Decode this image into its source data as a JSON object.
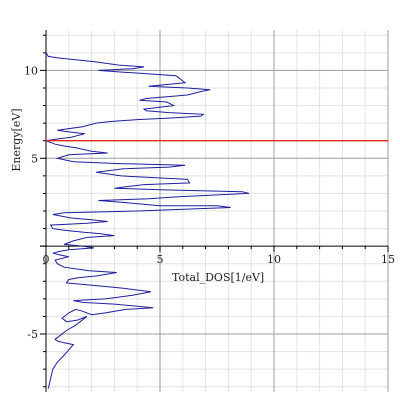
{
  "chart_data": {
    "type": "line",
    "title": "",
    "xlabel": "Total_DOS[1/eV]",
    "ylabel": "Energy[eV]",
    "xlim": [
      0,
      15
    ],
    "ylim": [
      -8.3,
      12.3
    ],
    "grid": true,
    "x_ticks": [
      0,
      5,
      10,
      15
    ],
    "y_ticks": [
      -5,
      5,
      10
    ],
    "colors": {
      "dos_curve": "#1f1f9e",
      "fermi_line": "#e8281e",
      "major_grid": "#9c9c9c",
      "minor_grid": "#e3e3e3",
      "axis": "#000000"
    },
    "reference_line": {
      "orientation": "horizontal",
      "y": 6.0
    },
    "series": [
      {
        "x": [
          0.1,
          0.3,
          0.5,
          0.8,
          1.0,
          1.2,
          0.8,
          0.5,
          0.4,
          0.6,
          0.9,
          1.3,
          1.5,
          1.8,
          1.4,
          0.9,
          0.7,
          1.0,
          1.3,
          1.6,
          2.0,
          2.6,
          3.5,
          4.7,
          3.0,
          1.6,
          1.2,
          2.6,
          3.8,
          4.6,
          3.4,
          1.8,
          0.9,
          1.0,
          1.4,
          2.2,
          3.1,
          1.9,
          0.8,
          0.5,
          0.4,
          0.7,
          1.0,
          0.6,
          0.3,
          0.6,
          1.0,
          2.1,
          1.6,
          0.8,
          1.2,
          1.8,
          3.0,
          2.4,
          1.6,
          0.8,
          0.3,
          0.2,
          1.8,
          2.7,
          2.0,
          1.1,
          0.3,
          0.8,
          4.0,
          8.1,
          7.5,
          5.0,
          3.3,
          2.3,
          4.5,
          5.7,
          8.9,
          8.6,
          5.2,
          3.0,
          4.3,
          6.3,
          6.2,
          3.3,
          2.2,
          3.4,
          5.4,
          6.1,
          3.2,
          1.2,
          0.5,
          1.0,
          2.7,
          2.0,
          1.3,
          0.8,
          0.4,
          0.0,
          0.5,
          1.1,
          1.7,
          1.0,
          0.5,
          1.6,
          2.2,
          2.9,
          4.0,
          5.6,
          6.8,
          6.9,
          5.4,
          4.4,
          4.3,
          5.6,
          5.3,
          4.1,
          4.4,
          6.2,
          6.8,
          7.2,
          6.2,
          4.5,
          6.1,
          5.7,
          3.4,
          2.3,
          3.8,
          4.3,
          3.2,
          2.1,
          0.6,
          0.1,
          0.0
        ],
        "y": [
          -8.1,
          -7.0,
          -6.6,
          -6.2,
          -5.9,
          -5.6,
          -5.5,
          -5.4,
          -5.3,
          -5.1,
          -4.8,
          -4.5,
          -4.3,
          -4.0,
          -4.2,
          -4.3,
          -4.1,
          -3.8,
          -3.6,
          -3.7,
          -3.9,
          -3.8,
          -3.6,
          -3.5,
          -3.3,
          -3.2,
          -3.1,
          -3.0,
          -2.8,
          -2.6,
          -2.4,
          -2.2,
          -2.1,
          -1.9,
          -1.8,
          -1.7,
          -1.5,
          -1.4,
          -1.2,
          -1.0,
          -0.8,
          -0.7,
          -0.6,
          -0.5,
          -0.4,
          -0.3,
          -0.2,
          -0.1,
          0.0,
          0.1,
          0.3,
          0.5,
          0.6,
          0.7,
          0.8,
          0.9,
          1.0,
          1.2,
          1.3,
          1.4,
          1.5,
          1.6,
          1.8,
          1.9,
          2.0,
          2.2,
          2.3,
          2.3,
          2.5,
          2.6,
          2.7,
          2.8,
          3.0,
          3.1,
          3.2,
          3.3,
          3.5,
          3.6,
          3.8,
          4.0,
          4.2,
          4.4,
          4.5,
          4.6,
          4.7,
          4.8,
          5.0,
          5.2,
          5.3,
          5.4,
          5.6,
          5.7,
          5.8,
          6.0,
          6.1,
          6.2,
          6.4,
          6.5,
          6.6,
          6.8,
          7.0,
          7.1,
          7.2,
          7.3,
          7.4,
          7.5,
          7.6,
          7.7,
          7.8,
          8.0,
          8.2,
          8.3,
          8.4,
          8.6,
          8.8,
          8.9,
          9.0,
          9.1,
          9.3,
          9.7,
          9.9,
          10.0,
          10.1,
          10.2,
          10.3,
          10.5,
          10.7,
          10.8,
          11.0
        ]
      }
    ]
  }
}
